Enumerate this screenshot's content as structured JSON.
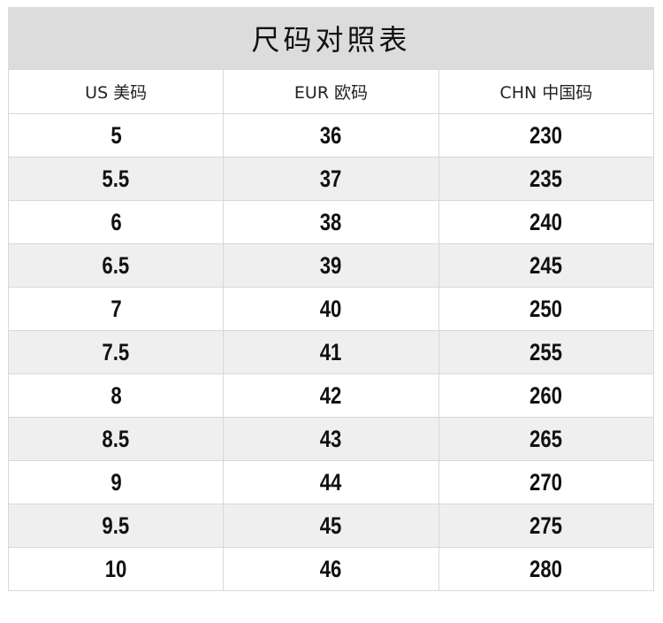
{
  "title": "尺码对照表",
  "headers": [
    "US 美码",
    "EUR 欧码",
    "CHN 中国码"
  ],
  "rows": [
    [
      "5",
      "36",
      "230"
    ],
    [
      "5.5",
      "37",
      "235"
    ],
    [
      "6",
      "38",
      "240"
    ],
    [
      "6.5",
      "39",
      "245"
    ],
    [
      "7",
      "40",
      "250"
    ],
    [
      "7.5",
      "41",
      "255"
    ],
    [
      "8",
      "42",
      "260"
    ],
    [
      "8.5",
      "43",
      "265"
    ],
    [
      "9",
      "44",
      "270"
    ],
    [
      "9.5",
      "45",
      "275"
    ],
    [
      "10",
      "46",
      "280"
    ]
  ]
}
